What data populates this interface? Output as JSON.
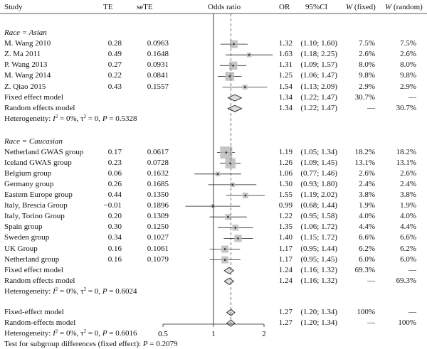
{
  "headers": {
    "study": "Study",
    "te": "TE",
    "sete": "seTE",
    "odds_ratio": "Odds ratio",
    "or": "OR",
    "ci": "95%CI",
    "w_fixed_w": "W",
    "w_fixed_rest": "(fixed)",
    "w_random_w": "W",
    "w_random_rest": "(random)"
  },
  "chart_data": {
    "type": "forest",
    "xscale": "log",
    "xticks": [
      "0.5",
      "1",
      "2"
    ],
    "tick_values": [
      0.5,
      1,
      2
    ],
    "pooled_or": 1.27,
    "groups": [
      {
        "label_prefix": "Race = ",
        "label_value": "Asian",
        "studies": [
          {
            "name": "M. Wang 2010",
            "te": "0.28",
            "sete": "0.0963",
            "or": 1.32,
            "lo": 1.1,
            "hi": 1.6,
            "ci": "(1.10; 1.60)",
            "wf": "7.5%",
            "wr": "7.5%"
          },
          {
            "name": "Z. Ma 2011",
            "te": "0.49",
            "sete": "0.1648",
            "or": 1.63,
            "lo": 1.18,
            "hi": 2.25,
            "ci": "(1.18; 2.25)",
            "wf": "2.6%",
            "wr": "2.6%"
          },
          {
            "name": "P. Wang 2013",
            "te": "0.27",
            "sete": "0.0931",
            "or": 1.31,
            "lo": 1.09,
            "hi": 1.57,
            "ci": "(1.09; 1.57)",
            "wf": "8.0%",
            "wr": "8.0%"
          },
          {
            "name": "M. Wang 2014",
            "te": "0.22",
            "sete": "0.0841",
            "or": 1.25,
            "lo": 1.06,
            "hi": 1.47,
            "ci": "(1.06; 1.47)",
            "wf": "9.8%",
            "wr": "9.8%"
          },
          {
            "name": "Z. Qiao 2015",
            "te": "0.43",
            "sete": "0.1557",
            "or": 1.54,
            "lo": 1.13,
            "hi": 2.09,
            "ci": "(1.13; 2.09)",
            "wf": "2.9%",
            "wr": "2.9%"
          }
        ],
        "summaries": [
          {
            "name": "Fixed effect model",
            "or": 1.34,
            "lo": 1.22,
            "hi": 1.47,
            "or_text": "1.34",
            "ci": "(1.22; 1.47)",
            "wf": "30.7%",
            "wr": "—"
          },
          {
            "name": "Random effects model",
            "or": 1.34,
            "lo": 1.22,
            "hi": 1.47,
            "or_text": "1.34",
            "ci": "(1.22; 1.47)",
            "wf": "—",
            "wr": "30.7%"
          }
        ],
        "heterogeneity": {
          "prefix": "Heterogeneity: ",
          "i2": "I",
          "i2_rest": " = 0%, τ",
          "tau_rest": " = 0, ",
          "p": "P",
          "p_rest": " = 0.5328"
        }
      },
      {
        "label_prefix": "Race = ",
        "label_value": "Caucasian",
        "studies": [
          {
            "name": "Netherland GWAS group",
            "te": "0.17",
            "sete": "0.0617",
            "or": 1.19,
            "lo": 1.05,
            "hi": 1.34,
            "ci": "(1.05; 1.34)",
            "wf": "18.2%",
            "wr": "18.2%"
          },
          {
            "name": "Iceland GWAS group",
            "te": "0.23",
            "sete": "0.0728",
            "or": 1.26,
            "lo": 1.09,
            "hi": 1.45,
            "ci": "(1.09; 1.45)",
            "wf": "13.1%",
            "wr": "13.1%"
          },
          {
            "name": "Belgium group",
            "te": "0.06",
            "sete": "0.1632",
            "or": 1.06,
            "lo": 0.77,
            "hi": 1.46,
            "ci": "(0.77; 1.46)",
            "wf": "2.6%",
            "wr": "2.6%"
          },
          {
            "name": "Germany group",
            "te": "0.26",
            "sete": "0.1685",
            "or": 1.3,
            "lo": 0.93,
            "hi": 1.8,
            "ci": "(0.93; 1.80)",
            "wf": "2.4%",
            "wr": "2.4%"
          },
          {
            "name": "Eastern Europe group",
            "te": "0.44",
            "sete": "0.1350",
            "or": 1.55,
            "lo": 1.19,
            "hi": 2.02,
            "ci": "(1.19; 2.02)",
            "wf": "3.8%",
            "wr": "3.8%"
          },
          {
            "name": "Italy, Brescia Group",
            "te": "−0.01",
            "sete": "0.1896",
            "or": 0.99,
            "lo": 0.68,
            "hi": 1.44,
            "ci": "(0.68; 1.44)",
            "wf": "1.9%",
            "wr": "1.9%"
          },
          {
            "name": "Italy, Torino Group",
            "te": "0.20",
            "sete": "0.1309",
            "or": 1.22,
            "lo": 0.95,
            "hi": 1.58,
            "ci": "(0.95; 1.58)",
            "wf": "4.0%",
            "wr": "4.0%"
          },
          {
            "name": "Spain group",
            "te": "0.30",
            "sete": "0.1250",
            "or": 1.35,
            "lo": 1.06,
            "hi": 1.72,
            "ci": "(1.06; 1.72)",
            "wf": "4.4%",
            "wr": "4.4%"
          },
          {
            "name": "Sweden group",
            "te": "0.34",
            "sete": "0.1027",
            "or": 1.4,
            "lo": 1.15,
            "hi": 1.72,
            "ci": "(1.15; 1.72)",
            "wf": "6.6%",
            "wr": "6.6%"
          },
          {
            "name": "UK Group",
            "te": "0.16",
            "sete": "0.1061",
            "or": 1.17,
            "lo": 0.95,
            "hi": 1.44,
            "ci": "(0.95; 1.44)",
            "wf": "6.2%",
            "wr": "6.2%"
          },
          {
            "name": "Netherland group",
            "te": "0.16",
            "sete": "0.1079",
            "or": 1.17,
            "lo": 0.95,
            "hi": 1.45,
            "ci": "(0.95; 1.45)",
            "wf": "6.0%",
            "wr": "6.0%"
          }
        ],
        "summaries": [
          {
            "name": "Fixed effect model",
            "or": 1.24,
            "lo": 1.16,
            "hi": 1.32,
            "or_text": "1.24",
            "ci": "(1.16; 1.32)",
            "wf": "69.3%",
            "wr": "—"
          },
          {
            "name": "Random effects model",
            "or": 1.24,
            "lo": 1.16,
            "hi": 1.32,
            "or_text": "1.24",
            "ci": "(1.16; 1.32)",
            "wf": "—",
            "wr": "69.3%"
          }
        ],
        "heterogeneity": {
          "prefix": "Heterogeneity: ",
          "i2": "I",
          "i2_rest": " = 0%, τ",
          "tau_rest": " = 0, ",
          "p": "P",
          "p_rest": " = 0.6024"
        }
      }
    ],
    "overall": {
      "summaries": [
        {
          "name": "Fixed-effect model",
          "or": 1.27,
          "lo": 1.2,
          "hi": 1.34,
          "or_text": "1.27",
          "ci": "(1.20; 1.34)",
          "wf": "100%",
          "wr": "—"
        },
        {
          "name": "Random-effects model",
          "or": 1.27,
          "lo": 1.2,
          "hi": 1.34,
          "or_text": "1.27",
          "ci": "(1.20; 1.34)",
          "wf": "—",
          "wr": "100%"
        }
      ],
      "heterogeneity": {
        "prefix": "Heterogeneity: ",
        "i2": "I",
        "i2_rest": " = 0%, τ",
        "tau_rest": " = 0, ",
        "p": "P",
        "p_rest": " = 0.6016"
      },
      "subgroup_test": {
        "text": "Test for subgroup differences (fixed effect): ",
        "p": "P",
        "p_rest": " = 0.2079"
      }
    }
  }
}
